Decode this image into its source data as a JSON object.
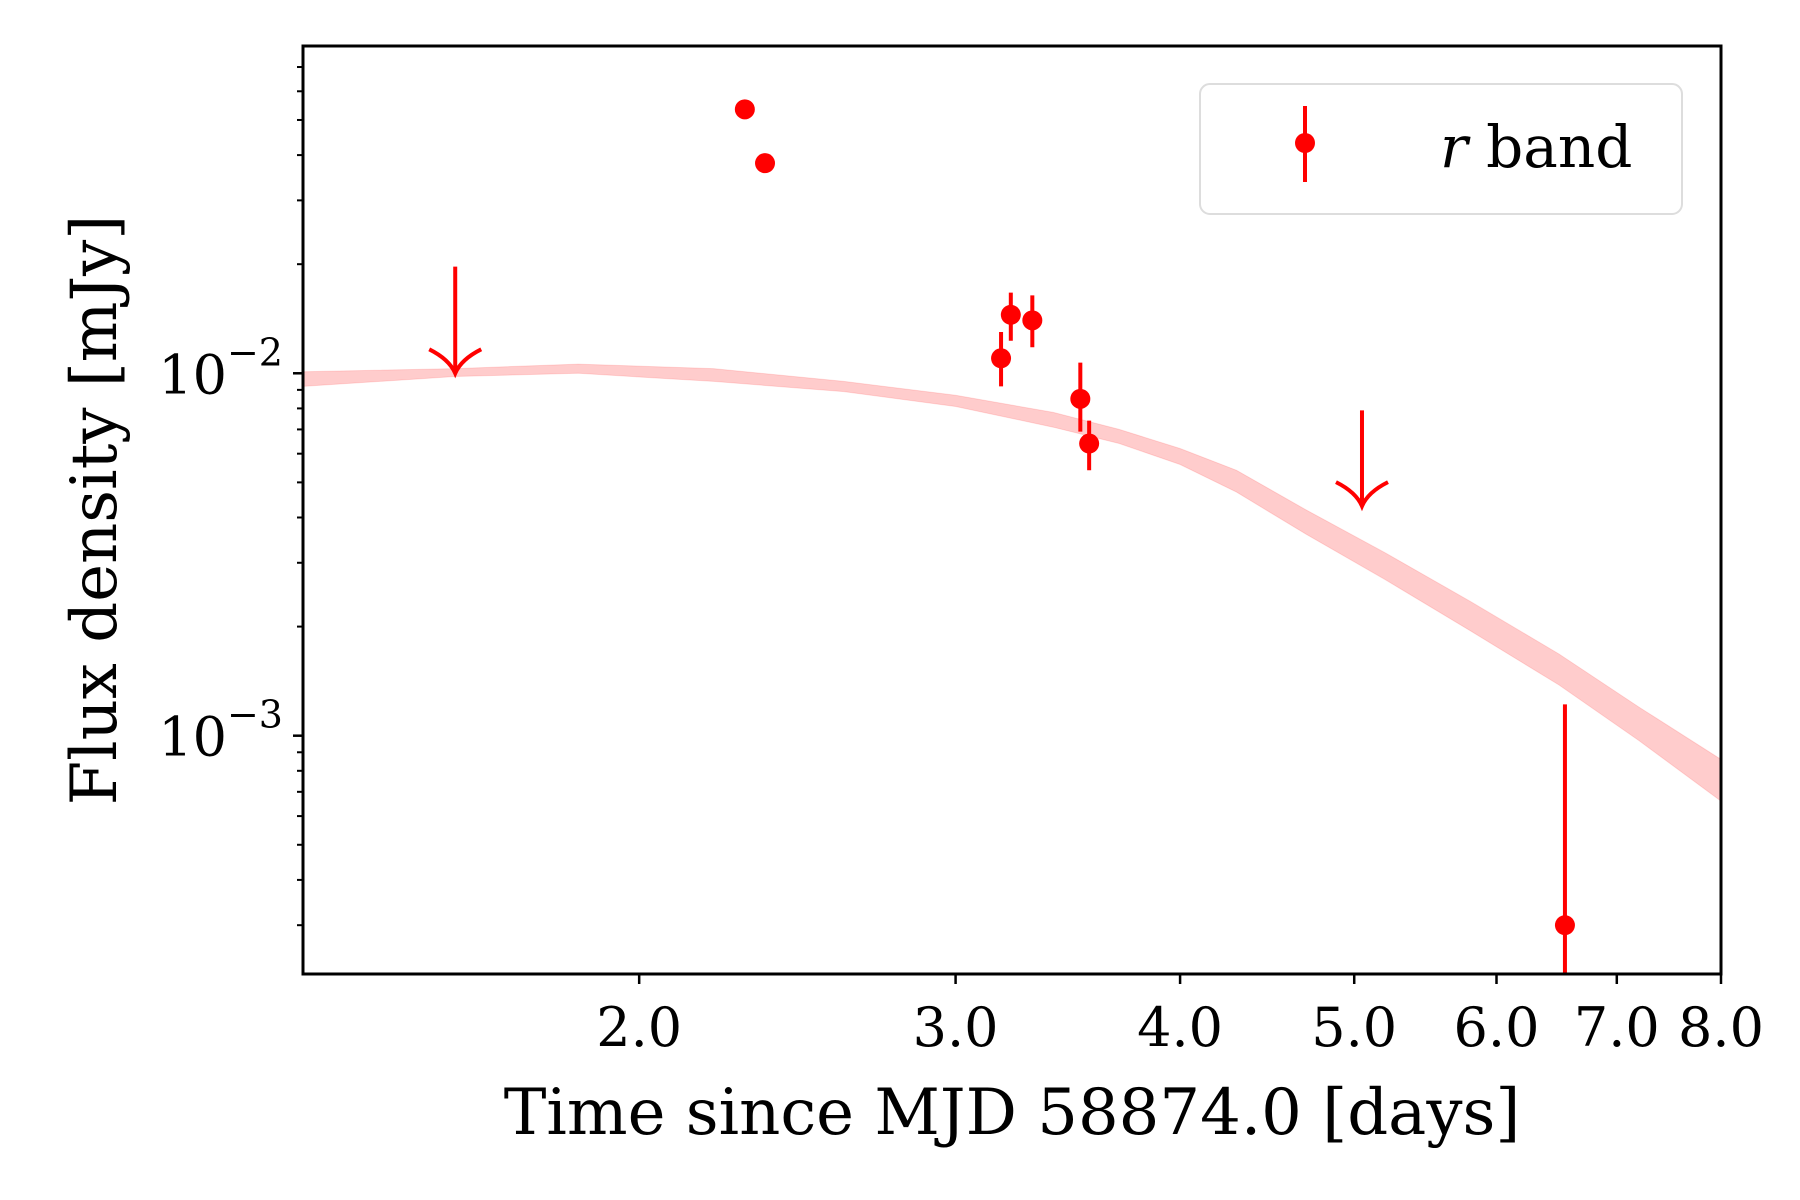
{
  "chart_data": {
    "type": "scatter",
    "xscale": "log",
    "yscale": "log",
    "xlabel": "Time since MJD 58874.0 [days]",
    "ylabel": "Flux density [mJy]",
    "xlim": [
      1.3,
      8.0
    ],
    "ylim": [
      0.00022,
      0.08
    ],
    "x_ticks": [
      {
        "value": 2.0,
        "label": "2.0"
      },
      {
        "value": 3.0,
        "label": "3.0"
      },
      {
        "value": 4.0,
        "label": "4.0"
      },
      {
        "value": 5.0,
        "label": "5.0"
      },
      {
        "value": 6.0,
        "label": "6.0"
      },
      {
        "value": 7.0,
        "label": "7.0"
      },
      {
        "value": 8.0,
        "label": "8.0"
      }
    ],
    "y_ticks": [
      {
        "value": 0.01,
        "base": "10",
        "exponent": "−2"
      },
      {
        "value": 0.001,
        "base": "10",
        "exponent": "−3"
      }
    ],
    "legend": {
      "position": "top-right",
      "label_italic": "r",
      "label_rest": " band"
    },
    "color": "#ff0000",
    "band_color": "#ff0000",
    "detections": [
      {
        "t": 2.29,
        "flux": 0.0535,
        "err_lo": 0.0025,
        "err_hi": 0.0025
      },
      {
        "t": 2.35,
        "flux": 0.038,
        "err_lo": 0.0018,
        "err_hi": 0.0018
      },
      {
        "t": 3.18,
        "flux": 0.011,
        "err_lo": 0.0018,
        "err_hi": 0.002
      },
      {
        "t": 3.22,
        "flux": 0.0145,
        "err_lo": 0.0022,
        "err_hi": 0.0022
      },
      {
        "t": 3.31,
        "flux": 0.014,
        "err_lo": 0.0022,
        "err_hi": 0.0024
      },
      {
        "t": 3.52,
        "flux": 0.0085,
        "err_lo": 0.0016,
        "err_hi": 0.0022
      },
      {
        "t": 3.56,
        "flux": 0.0064,
        "err_lo": 0.001,
        "err_hi": 0.001
      },
      {
        "t": 6.55,
        "flux": 0.0003,
        "err_lo": 8e-05,
        "err_hi": 0.00092
      }
    ],
    "upper_limits": [
      {
        "t": 1.58,
        "flux": 0.01,
        "arrow_top": 0.0197
      },
      {
        "t": 5.05,
        "flux": 0.0043,
        "arrow_top": 0.0079
      }
    ],
    "model_band": {
      "t": [
        1.3,
        1.58,
        1.85,
        2.2,
        2.6,
        3.0,
        3.4,
        3.7,
        4.0,
        4.3,
        4.7,
        5.2,
        5.8,
        6.5,
        7.2,
        8.0
      ],
      "lower": [
        0.0092,
        0.0098,
        0.01,
        0.0095,
        0.0089,
        0.0081,
        0.0071,
        0.0064,
        0.0056,
        0.0047,
        0.0036,
        0.0027,
        0.00195,
        0.00138,
        0.00097,
        0.00066
      ],
      "upper": [
        0.0101,
        0.0103,
        0.0106,
        0.0103,
        0.0095,
        0.0087,
        0.0078,
        0.007,
        0.0062,
        0.0054,
        0.0042,
        0.0032,
        0.00235,
        0.00168,
        0.0012,
        0.00086
      ]
    }
  }
}
